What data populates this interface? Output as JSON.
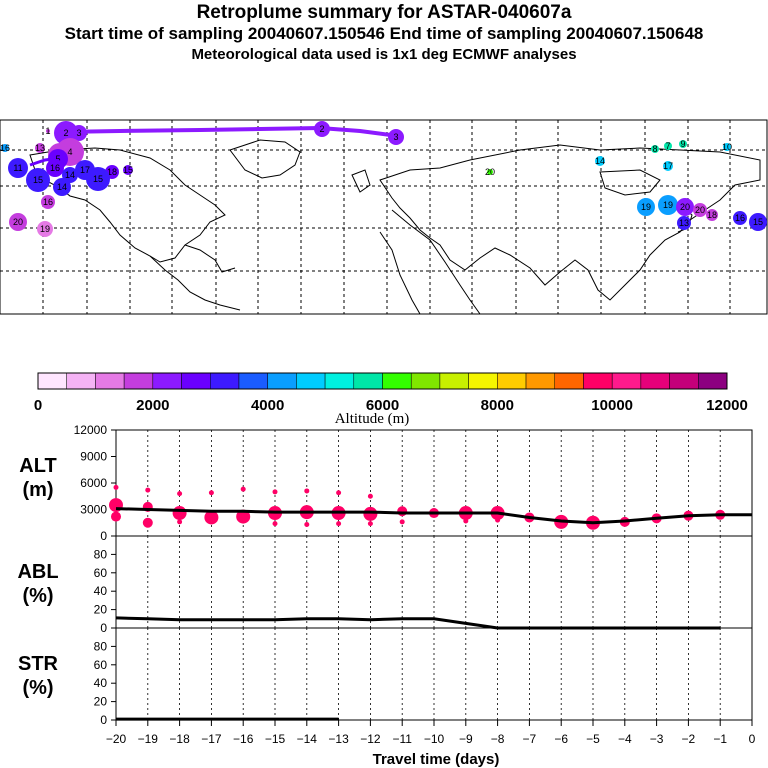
{
  "header": {
    "title": "Retroplume summary for ASTAR-040607a",
    "subtitle": "Start time of sampling 20040607.150546     End time of sampling 20040607.150648",
    "met": "Meteorological data used is 1x1 deg ECMWF analyses"
  },
  "colorbar": {
    "label": "Altitude (m)",
    "ticks": [
      "0",
      "2000",
      "4000",
      "6000",
      "8000",
      "10000",
      "12000"
    ],
    "colors": [
      "#ffe6ff",
      "#f5b3f5",
      "#e57ae5",
      "#c43dde",
      "#8c1aff",
      "#6a00ff",
      "#3d1aff",
      "#1a5cff",
      "#0a9eff",
      "#00ccff",
      "#00f0e0",
      "#00e6a8",
      "#33ff00",
      "#80e600",
      "#c8f000",
      "#f5f500",
      "#ffcc00",
      "#ff9900",
      "#ff6600",
      "#ff0066",
      "#ff1a8c",
      "#e6007a",
      "#c4007a",
      "#8c0080"
    ]
  },
  "map": {
    "labels": [
      "2",
      "3",
      "2",
      "3",
      "5",
      "4",
      "5",
      "1",
      "16",
      "11",
      "17",
      "15",
      "16",
      "14",
      "14",
      "16",
      "19",
      "20",
      "18",
      "15",
      "15",
      "13",
      "14",
      "19",
      "19",
      "20",
      "20",
      "18",
      "16",
      "15",
      "13",
      "8",
      "7",
      "9",
      "10",
      "17",
      "20"
    ]
  },
  "chart_data": [
    {
      "type": "line",
      "panel": "ALT",
      "ylabel": "ALT (m)",
      "ylim": [
        0,
        12000
      ],
      "yticks": [
        "12000",
        "9000",
        "6000",
        "3000",
        "0"
      ],
      "x": [
        -20,
        -19,
        -18,
        -17,
        -16,
        -15,
        -14,
        -13,
        -12,
        -11,
        -10,
        -9,
        -8,
        -7,
        -6,
        -5,
        -4,
        -3,
        -2,
        -1,
        0
      ],
      "series": [
        {
          "name": "mean altitude",
          "values": [
            3100,
            3000,
            2900,
            2800,
            2800,
            2700,
            2700,
            2700,
            2700,
            2600,
            2600,
            2600,
            2600,
            2100,
            1700,
            1500,
            1700,
            2000,
            2300,
            2400,
            2400
          ]
        }
      ],
      "scatter": [
        {
          "x": -20,
          "y": 3500,
          "size": "large"
        },
        {
          "x": -20,
          "y": 2200,
          "size": "medium"
        },
        {
          "x": -20,
          "y": 5500,
          "size": "small"
        },
        {
          "x": -19,
          "y": 3300,
          "size": "medium"
        },
        {
          "x": -19,
          "y": 1500,
          "size": "medium"
        },
        {
          "x": -19,
          "y": 5200,
          "size": "small"
        },
        {
          "x": -18,
          "y": 2600,
          "size": "large"
        },
        {
          "x": -18,
          "y": 1600,
          "size": "small"
        },
        {
          "x": -18,
          "y": 4800,
          "size": "small"
        },
        {
          "x": -17,
          "y": 2100,
          "size": "large"
        },
        {
          "x": -17,
          "y": 4900,
          "size": "small"
        },
        {
          "x": -16,
          "y": 2200,
          "size": "large"
        },
        {
          "x": -16,
          "y": 5300,
          "size": "small"
        },
        {
          "x": -15,
          "y": 2600,
          "size": "large"
        },
        {
          "x": -15,
          "y": 1400,
          "size": "small"
        },
        {
          "x": -15,
          "y": 5000,
          "size": "small"
        },
        {
          "x": -14,
          "y": 2700,
          "size": "large"
        },
        {
          "x": -14,
          "y": 1300,
          "size": "small"
        },
        {
          "x": -14,
          "y": 5100,
          "size": "small"
        },
        {
          "x": -13,
          "y": 2600,
          "size": "large"
        },
        {
          "x": -13,
          "y": 1400,
          "size": "small"
        },
        {
          "x": -13,
          "y": 4900,
          "size": "small"
        },
        {
          "x": -12,
          "y": 2500,
          "size": "large"
        },
        {
          "x": -12,
          "y": 1400,
          "size": "small"
        },
        {
          "x": -12,
          "y": 4500,
          "size": "small"
        },
        {
          "x": -11,
          "y": 2800,
          "size": "medium"
        },
        {
          "x": -11,
          "y": 1600,
          "size": "small"
        },
        {
          "x": -10,
          "y": 2600,
          "size": "medium"
        },
        {
          "x": -9,
          "y": 2600,
          "size": "large"
        },
        {
          "x": -9,
          "y": 1700,
          "size": "small"
        },
        {
          "x": -8,
          "y": 2600,
          "size": "large"
        },
        {
          "x": -8,
          "y": 1800,
          "size": "small"
        },
        {
          "x": -7,
          "y": 2100,
          "size": "medium"
        },
        {
          "x": -6,
          "y": 1600,
          "size": "large"
        },
        {
          "x": -5,
          "y": 1500,
          "size": "large"
        },
        {
          "x": -4,
          "y": 1600,
          "size": "medium"
        },
        {
          "x": -3,
          "y": 2000,
          "size": "medium"
        },
        {
          "x": -2,
          "y": 2300,
          "size": "medium"
        },
        {
          "x": -1,
          "y": 2400,
          "size": "medium"
        }
      ]
    },
    {
      "type": "line",
      "panel": "ABL",
      "ylabel": "ABL (%)",
      "ylim": [
        0,
        100
      ],
      "yticks": [
        "80",
        "60",
        "40",
        "20",
        "0"
      ],
      "x": [
        -20,
        -19,
        -18,
        -17,
        -16,
        -15,
        -14,
        -13,
        -12,
        -11,
        -10,
        -9,
        -8,
        -7,
        -6,
        -5,
        -4,
        -3,
        -2,
        -1,
        0
      ],
      "series": [
        {
          "name": "ABL fraction",
          "values": [
            11,
            10,
            9,
            9,
            9,
            9,
            10,
            10,
            9,
            10,
            10,
            5,
            0,
            0,
            0,
            0,
            0,
            0,
            0,
            0,
            0
          ]
        }
      ]
    },
    {
      "type": "line",
      "panel": "STR",
      "ylabel": "STR (%)",
      "ylim": [
        0,
        100
      ],
      "yticks": [
        "80",
        "60",
        "40",
        "20",
        "0"
      ],
      "x": [
        -20,
        -19,
        -18,
        -17,
        -16,
        -15,
        -14,
        -13,
        -12,
        -11,
        -10,
        -9,
        -8,
        -7,
        -6,
        -5,
        -4,
        -3,
        -2,
        -1,
        0
      ],
      "series": [
        {
          "name": "stratospheric fraction",
          "values": [
            1,
            1,
            1,
            1,
            1,
            1,
            1,
            1,
            0,
            0,
            0,
            0,
            0,
            0,
            0,
            0,
            0,
            0,
            0,
            0,
            0
          ]
        }
      ]
    }
  ],
  "xaxis": {
    "label": "Travel time (days)",
    "ticks": [
      "−20",
      "−19",
      "−18",
      "−17",
      "−16",
      "−15",
      "−14",
      "−13",
      "−12",
      "−11",
      "−10",
      "−9",
      "−8",
      "−7",
      "−6",
      "−5",
      "−4",
      "−3",
      "−2",
      "−1",
      "0"
    ]
  }
}
